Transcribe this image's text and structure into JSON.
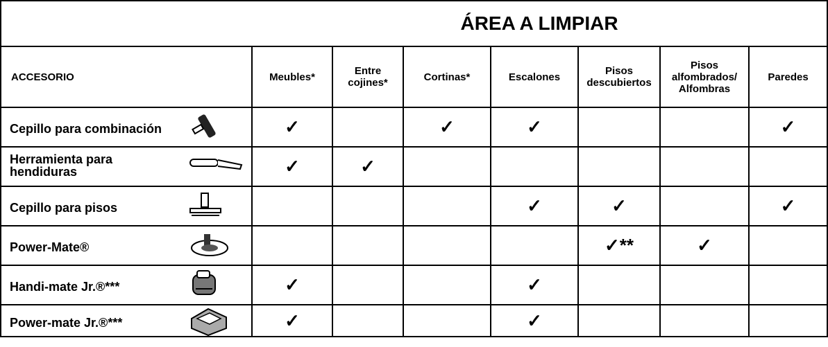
{
  "header": {
    "title": "ÁREA A LIMPIAR",
    "accessory": "ACCESORIO",
    "columns": [
      "Meubles*",
      "Entre\ncojines*",
      "Cortinas*",
      "Escalones",
      "Pisos\ndescubiertos",
      "Pisos\nalfombrados/\nAlfombras",
      "Paredes"
    ]
  },
  "rows": [
    {
      "name": "Cepillo para combinación",
      "cells": [
        "✓",
        null,
        "✓",
        "✓",
        null,
        null,
        "✓"
      ]
    },
    {
      "name": "Herramienta para\nhendiduras",
      "cells": [
        "✓",
        "✓",
        null,
        null,
        null,
        null,
        null
      ]
    },
    {
      "name": "Cepillo para pisos",
      "cells": [
        null,
        null,
        null,
        "✓",
        "✓",
        null,
        "✓"
      ]
    },
    {
      "name": "Power-Mate®",
      "cells": [
        null,
        null,
        null,
        null,
        "✓**",
        "✓",
        null
      ]
    },
    {
      "name": "Handi-mate Jr.®***",
      "cells": [
        "✓",
        null,
        null,
        "✓",
        null,
        null,
        null
      ]
    },
    {
      "name": "Power-mate Jr.®***",
      "cells": [
        "✓",
        null,
        null,
        "✓",
        null,
        null,
        null
      ]
    }
  ]
}
